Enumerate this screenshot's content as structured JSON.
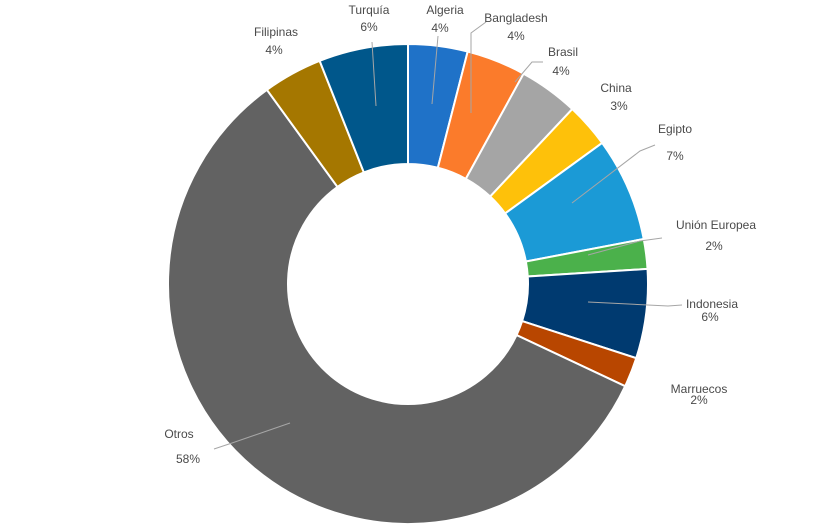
{
  "chart_data": {
    "type": "pie",
    "donut": true,
    "title": "",
    "legend": "none",
    "unit": "%",
    "slices": [
      {
        "name": "Algeria",
        "value": 4,
        "label": "4%",
        "color": "#1f72c8"
      },
      {
        "name": "Bangladesh",
        "value": 4,
        "label": "4%",
        "color": "#fb7b2b"
      },
      {
        "name": "Brasil",
        "value": 4,
        "label": "4%",
        "color": "#a5a5a5"
      },
      {
        "name": "China",
        "value": 3,
        "label": "3%",
        "color": "#fec10a"
      },
      {
        "name": "Egipto",
        "value": 7,
        "label": "7%",
        "color": "#1b9ad6"
      },
      {
        "name": "Unión Europea",
        "value": 2,
        "label": "2%",
        "color": "#4bb14b"
      },
      {
        "name": "Indonesia",
        "value": 6,
        "label": "6%",
        "color": "#003a70"
      },
      {
        "name": "Marruecos",
        "value": 2,
        "label": "2%",
        "color": "#b84600"
      },
      {
        "name": "Otros",
        "value": 58,
        "label": "58%",
        "color": "#626262"
      },
      {
        "name": "Filipinas",
        "value": 4,
        "label": "4%",
        "color": "#a57700"
      },
      {
        "name": "Turquía",
        "value": 6,
        "label": "6%",
        "color": "#00578b"
      }
    ]
  }
}
